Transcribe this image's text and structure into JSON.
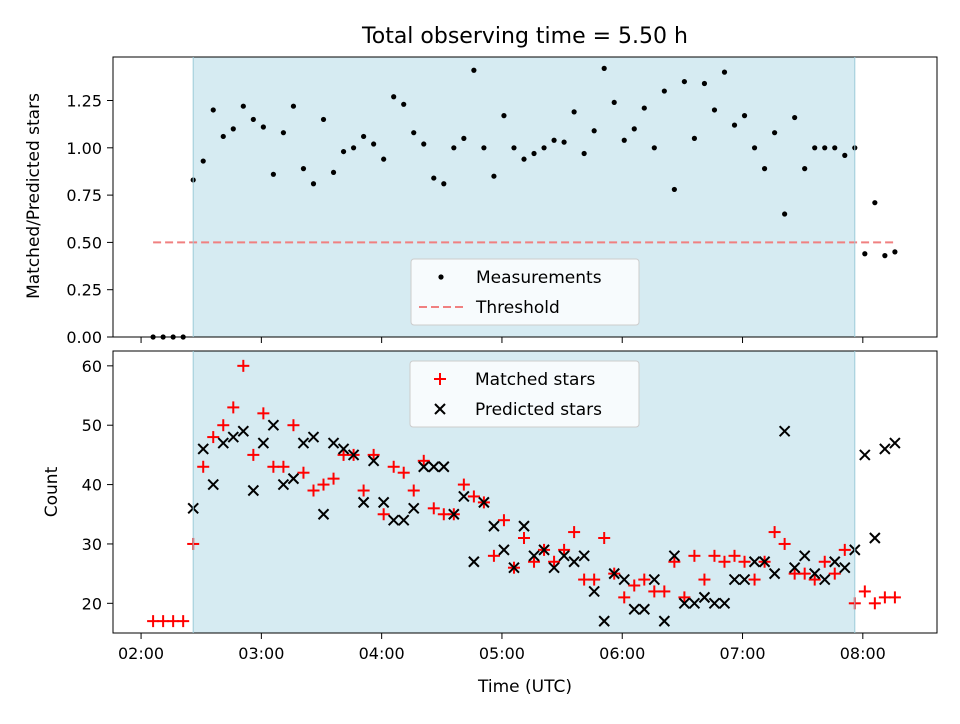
{
  "figure": {
    "title": "Total observing time = 5.50 h",
    "xlabel": "Time (UTC)"
  },
  "chart_data": [
    {
      "type": "scatter",
      "ylabel": "Matched/Predicted stars",
      "ylim": [
        0,
        1.48
      ],
      "xlim": [
        "01:46",
        "08:37"
      ],
      "yticks": [
        "0.00",
        "0.25",
        "0.50",
        "0.75",
        "1.00",
        "1.25"
      ],
      "xticks": [
        "02:00",
        "03:00",
        "04:00",
        "05:00",
        "06:00",
        "07:00",
        "08:00"
      ],
      "shaded_interval": {
        "start": "02:26",
        "end": "07:56",
        "color": "#add8e6"
      },
      "legend_position": "lower center",
      "legend": [
        "Measurements",
        "Threshold"
      ],
      "threshold": {
        "name": "Threshold",
        "value": 0.5,
        "x_start": "02:06",
        "x_end": "08:17",
        "color": "#f08080"
      },
      "series": [
        {
          "name": "Measurements",
          "color": "#000000",
          "marker": "dot",
          "x": [
            "02:06",
            "02:11",
            "02:16",
            "02:21",
            "02:26",
            "02:31",
            "02:36",
            "02:41",
            "02:46",
            "02:51",
            "02:56",
            "03:01",
            "03:06",
            "03:11",
            "03:16",
            "03:21",
            "03:26",
            "03:31",
            "03:36",
            "03:41",
            "03:46",
            "03:51",
            "03:56",
            "04:01",
            "04:06",
            "04:11",
            "04:16",
            "04:21",
            "04:26",
            "04:31",
            "04:36",
            "04:41",
            "04:46",
            "04:51",
            "04:56",
            "05:01",
            "05:06",
            "05:11",
            "05:16",
            "05:21",
            "05:26",
            "05:31",
            "05:36",
            "05:41",
            "05:46",
            "05:51",
            "05:56",
            "06:01",
            "06:06",
            "06:11",
            "06:16",
            "06:21",
            "06:26",
            "06:31",
            "06:36",
            "06:41",
            "06:46",
            "06:51",
            "06:56",
            "07:01",
            "07:06",
            "07:11",
            "07:16",
            "07:21",
            "07:26",
            "07:31",
            "07:36",
            "07:41",
            "07:46",
            "07:51",
            "07:56",
            "08:01",
            "08:06",
            "08:11",
            "08:16"
          ],
          "y": [
            0.0,
            0.0,
            0.0,
            0.0,
            0.83,
            0.93,
            1.2,
            1.06,
            1.1,
            1.22,
            1.15,
            1.11,
            0.86,
            1.08,
            1.22,
            0.89,
            0.81,
            1.15,
            0.87,
            0.98,
            1.0,
            1.06,
            1.02,
            0.94,
            1.27,
            1.23,
            1.08,
            1.02,
            0.84,
            0.81,
            1.0,
            1.05,
            1.41,
            1.0,
            0.85,
            1.17,
            1.0,
            0.94,
            0.97,
            1.0,
            1.04,
            1.03,
            1.19,
            0.97,
            1.09,
            1.42,
            1.24,
            1.04,
            1.1,
            1.21,
            1.0,
            1.3,
            0.78,
            1.35,
            1.05,
            1.34,
            1.2,
            1.4,
            1.12,
            1.17,
            1.0,
            0.89,
            1.08,
            0.65,
            1.16,
            0.89,
            1.0,
            1.0,
            1.0,
            0.96,
            1.0,
            0.44,
            0.71,
            0.43,
            0.45
          ]
        }
      ]
    },
    {
      "type": "scatter",
      "ylabel": "Count",
      "ylim": [
        15,
        62.5
      ],
      "xlim": [
        "01:46",
        "08:37"
      ],
      "yticks": [
        "20",
        "30",
        "40",
        "50",
        "60"
      ],
      "xticks": [
        "02:00",
        "03:00",
        "04:00",
        "05:00",
        "06:00",
        "07:00",
        "08:00"
      ],
      "shaded_interval": {
        "start": "02:26",
        "end": "07:56",
        "color": "#add8e6"
      },
      "legend_position": "upper center",
      "legend": [
        "Matched stars",
        "Predicted stars"
      ],
      "series": [
        {
          "name": "Matched stars",
          "color": "#ff0000",
          "marker": "plus",
          "x": [
            "02:06",
            "02:11",
            "02:16",
            "02:21",
            "02:26",
            "02:31",
            "02:36",
            "02:41",
            "02:46",
            "02:51",
            "02:56",
            "03:01",
            "03:06",
            "03:11",
            "03:16",
            "03:21",
            "03:26",
            "03:31",
            "03:36",
            "03:41",
            "03:46",
            "03:51",
            "03:56",
            "04:01",
            "04:06",
            "04:11",
            "04:16",
            "04:21",
            "04:26",
            "04:31",
            "04:36",
            "04:41",
            "04:46",
            "04:51",
            "04:56",
            "05:01",
            "05:06",
            "05:11",
            "05:16",
            "05:21",
            "05:26",
            "05:31",
            "05:36",
            "05:41",
            "05:46",
            "05:51",
            "05:56",
            "06:01",
            "06:06",
            "06:11",
            "06:16",
            "06:21",
            "06:26",
            "06:31",
            "06:36",
            "06:41",
            "06:46",
            "06:51",
            "06:56",
            "07:01",
            "07:06",
            "07:11",
            "07:16",
            "07:21",
            "07:26",
            "07:31",
            "07:36",
            "07:41",
            "07:46",
            "07:51",
            "07:56",
            "08:01",
            "08:06",
            "08:11",
            "08:16"
          ],
          "y": [
            17,
            17,
            17,
            17,
            30,
            43,
            48,
            50,
            53,
            60,
            45,
            52,
            43,
            43,
            50,
            42,
            39,
            40,
            41,
            45,
            45,
            39,
            45,
            35,
            43,
            42,
            39,
            44,
            36,
            35,
            35,
            40,
            38,
            37,
            28,
            34,
            26,
            31,
            27,
            29,
            27,
            29,
            32,
            24,
            24,
            31,
            25,
            21,
            23,
            24,
            22,
            22,
            27,
            21,
            28,
            24,
            28,
            27,
            28,
            27,
            24,
            27,
            32,
            30,
            25,
            25,
            24,
            27,
            25,
            29,
            20,
            22,
            20,
            21,
            21
          ]
        },
        {
          "name": "Predicted stars",
          "color": "#000000",
          "marker": "x",
          "x": [
            "02:26",
            "02:31",
            "02:36",
            "02:41",
            "02:46",
            "02:51",
            "02:56",
            "03:01",
            "03:06",
            "03:11",
            "03:16",
            "03:21",
            "03:26",
            "03:31",
            "03:36",
            "03:41",
            "03:46",
            "03:51",
            "03:56",
            "04:01",
            "04:06",
            "04:11",
            "04:16",
            "04:21",
            "04:26",
            "04:31",
            "04:36",
            "04:41",
            "04:46",
            "04:51",
            "04:56",
            "05:01",
            "05:06",
            "05:11",
            "05:16",
            "05:21",
            "05:26",
            "05:31",
            "05:36",
            "05:41",
            "05:46",
            "05:51",
            "05:56",
            "06:01",
            "06:06",
            "06:11",
            "06:16",
            "06:21",
            "06:26",
            "06:31",
            "06:36",
            "06:41",
            "06:46",
            "06:51",
            "06:56",
            "07:01",
            "07:06",
            "07:11",
            "07:16",
            "07:21",
            "07:26",
            "07:31",
            "07:36",
            "07:41",
            "07:46",
            "07:51",
            "07:56",
            "08:01",
            "08:06",
            "08:11",
            "08:16"
          ],
          "y": [
            36,
            46,
            40,
            47,
            48,
            49,
            39,
            47,
            50,
            40,
            41,
            47,
            48,
            35,
            47,
            46,
            45,
            37,
            44,
            37,
            34,
            34,
            36,
            43,
            43,
            43,
            35,
            38,
            27,
            37,
            33,
            29,
            26,
            33,
            28,
            29,
            26,
            28,
            27,
            28,
            22,
            17,
            25,
            24,
            19,
            19,
            24,
            17,
            28,
            20,
            20,
            21,
            20,
            20,
            24,
            24,
            27,
            27,
            25,
            49,
            26,
            28,
            25,
            24,
            27,
            26,
            29,
            45,
            31,
            46,
            47
          ]
        }
      ]
    }
  ]
}
